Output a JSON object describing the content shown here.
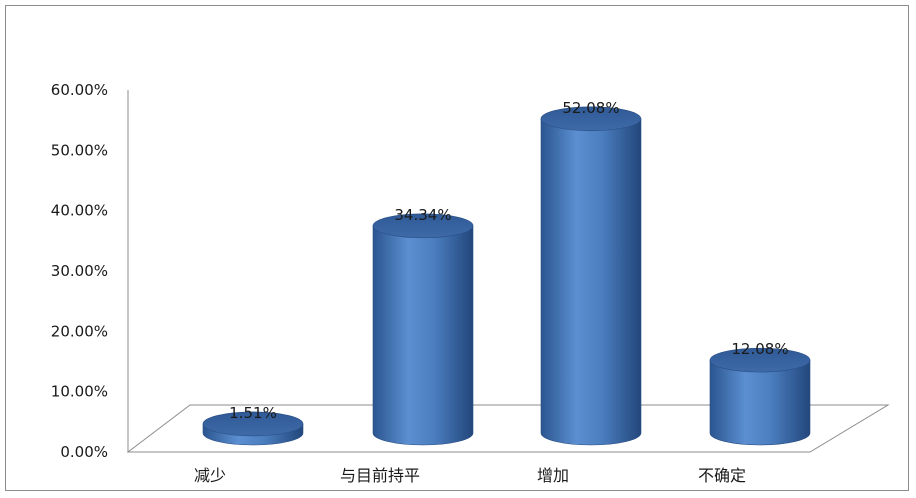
{
  "chart_data": {
    "type": "bar",
    "style": "3d-cylinder",
    "title": "",
    "xlabel": "",
    "ylabel": "",
    "categories": [
      "减少",
      "与目前持平",
      "增加",
      "不确定"
    ],
    "values": [
      1.51,
      34.34,
      52.08,
      12.08
    ],
    "data_labels": [
      "1.51%",
      "34.34%",
      "52.08%",
      "12.08%"
    ],
    "ylim": [
      0,
      60
    ],
    "y_ticks": [
      "0.00%",
      "10.00%",
      "20.00%",
      "30.00%",
      "40.00%",
      "50.00%",
      "60.00%"
    ],
    "bar_color": "#4a7ebf",
    "legend": "none",
    "grid": false
  }
}
